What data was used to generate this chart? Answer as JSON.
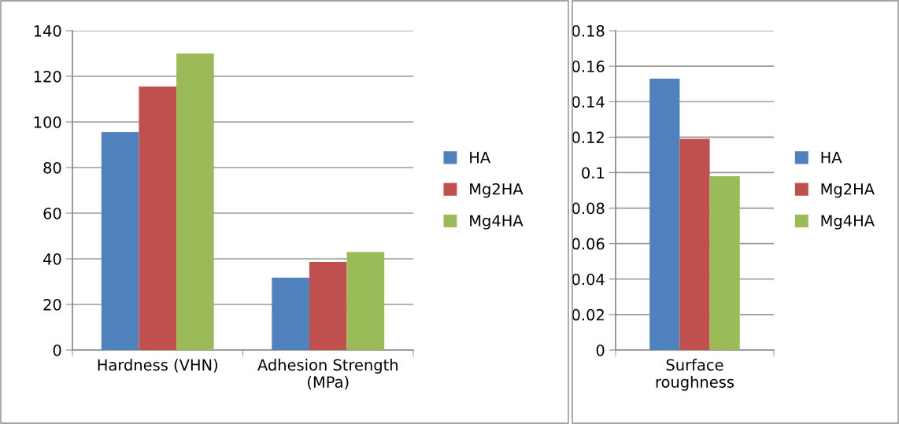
{
  "chart_data": [
    {
      "type": "bar",
      "categories": [
        "Hardness (VHN)",
        "Adhesion Strength\n(MPa)"
      ],
      "series": [
        {
          "name": "HA",
          "color": "#4f81bd",
          "values": [
            95.5,
            31.7
          ]
        },
        {
          "name": "Mg2HA",
          "color": "#c0504d",
          "values": [
            115.5,
            38.6
          ]
        },
        {
          "name": "Mg4HA",
          "color": "#9bbb59",
          "values": [
            130,
            43
          ]
        }
      ],
      "ylim": [
        0,
        140
      ],
      "yticks": [
        0,
        20,
        40,
        60,
        80,
        100,
        120,
        140
      ],
      "grid": "y",
      "legend": "right"
    },
    {
      "type": "bar",
      "categories": [
        "Surface\nroughness"
      ],
      "series": [
        {
          "name": "HA",
          "color": "#4f81bd",
          "values": [
            0.153
          ]
        },
        {
          "name": "Mg2HA",
          "color": "#c0504d",
          "values": [
            0.119
          ]
        },
        {
          "name": "Mg4HA",
          "color": "#9bbb59",
          "values": [
            0.098
          ]
        }
      ],
      "ylim": [
        0,
        0.18
      ],
      "yticks": [
        0,
        0.02,
        0.04,
        0.06,
        0.08,
        0.1,
        0.12,
        0.14,
        0.16,
        0.18
      ],
      "grid": "y",
      "legend": "right"
    }
  ]
}
